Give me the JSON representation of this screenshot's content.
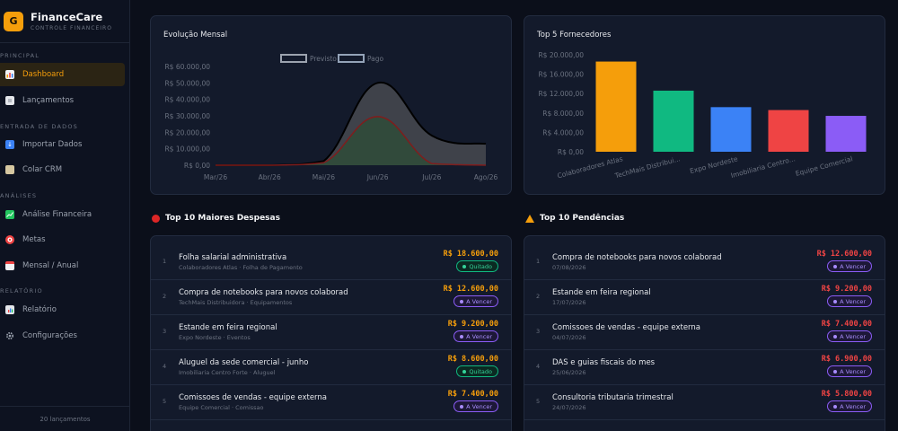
{
  "brand": {
    "logo": "G",
    "name": "FinanceCare",
    "subtitle": "CONTROLE FINANCEIRO"
  },
  "sidebar": {
    "sections": [
      "PRINCIPAL",
      "ENTRADA DE DADOS",
      "ANÁLISES",
      "RELATÓRIO"
    ],
    "items": [
      {
        "label": "Dashboard",
        "icon": "bar-chart-icon",
        "active": true
      },
      {
        "label": "Lançamentos",
        "icon": "document-icon"
      },
      {
        "label": "Importar Dados",
        "icon": "import-icon"
      },
      {
        "label": "Colar CRM",
        "icon": "clipboard-icon"
      },
      {
        "label": "Análise Financeira",
        "icon": "trend-chart-icon"
      },
      {
        "label": "Metas",
        "icon": "target-icon"
      },
      {
        "label": "Mensal / Anual",
        "icon": "calendar-icon"
      },
      {
        "label": "Relatório",
        "icon": "report-icon"
      },
      {
        "label": "Configurações",
        "icon": "gear-icon"
      }
    ],
    "footer": "20 lançamentos"
  },
  "monthly": {
    "title": "Evolução Mensal",
    "chart_data": {
      "type": "area",
      "x": [
        "Mar/26",
        "Abr/26",
        "Mai/26",
        "Jun/26",
        "Jul/26",
        "Ago/26"
      ],
      "y_ticks": [
        "R$ 0,00",
        "R$ 10.000,00",
        "R$ 20.000,00",
        "R$ 30.000,00",
        "R$ 40.000,00",
        "R$ 50.000,00",
        "R$ 60.000,00"
      ],
      "ylim": [
        0,
        60000
      ],
      "legend": "top",
      "series": [
        {
          "name": "Previsto",
          "values": [
            0,
            0,
            2500,
            50000,
            18000,
            13000
          ],
          "color": "#9ca3af"
        },
        {
          "name": "Pago",
          "values": [
            0,
            0,
            1500,
            29500,
            1000,
            0
          ],
          "color": "#7f1d1d"
        }
      ]
    }
  },
  "suppliers": {
    "title": "Top 5 Fornecedores",
    "chart_data": {
      "type": "bar",
      "categories": [
        "Colaboradores Atlas",
        "TechMais Distribui...",
        "Expo Nordeste",
        "Imobiliaria Centro...",
        "Equipe Comercial"
      ],
      "values": [
        18600,
        12600,
        9200,
        8600,
        7400
      ],
      "colors": [
        "#f59e0b",
        "#10b981",
        "#3b82f6",
        "#ef4444",
        "#8b5cf6"
      ],
      "y_ticks": [
        "R$ 0,00",
        "R$ 4.000,00",
        "R$ 8.000,00",
        "R$ 12.000,00",
        "R$ 16.000,00",
        "R$ 20.000,00"
      ],
      "ylim": [
        0,
        20000
      ]
    }
  },
  "expenses": {
    "title": "Top 10 Maiores Despesas",
    "rows": [
      {
        "num": "1",
        "title": "Folha salarial administrativa",
        "sub": "Colaboradores Atlas · Folha de Pagamento",
        "amount": "R$ 18.600,00",
        "status": "Quitado",
        "type": "paid"
      },
      {
        "num": "2",
        "title": "Compra de notebooks para novos colaborad",
        "sub": "TechMais Distribuidora · Equipamentos",
        "amount": "R$ 12.600,00",
        "status": "A Vencer",
        "type": "due"
      },
      {
        "num": "3",
        "title": "Estande em feira regional",
        "sub": "Expo Nordeste · Eventos",
        "amount": "R$ 9.200,00",
        "status": "A Vencer",
        "type": "due"
      },
      {
        "num": "4",
        "title": "Aluguel da sede comercial - junho",
        "sub": "Imobiliaria Centro Forte · Aluguel",
        "amount": "R$ 8.600,00",
        "status": "Quitado",
        "type": "paid"
      },
      {
        "num": "5",
        "title": "Comissoes de vendas - equipe externa",
        "sub": "Equipe Comercial · Comissao",
        "amount": "R$ 7.400,00",
        "status": "A Vencer",
        "type": "due"
      }
    ]
  },
  "pending": {
    "title": "Top 10 Pendências",
    "rows": [
      {
        "num": "1",
        "title": "Compra de notebooks para novos colaborad",
        "sub": "07/08/2026",
        "amount": "R$ 12.600,00",
        "status": "A Vencer",
        "type": "due"
      },
      {
        "num": "2",
        "title": "Estande em feira regional",
        "sub": "17/07/2026",
        "amount": "R$ 9.200,00",
        "status": "A Vencer",
        "type": "due"
      },
      {
        "num": "3",
        "title": "Comissoes de vendas - equipe externa",
        "sub": "04/07/2026",
        "amount": "R$ 7.400,00",
        "status": "A Vencer",
        "type": "due"
      },
      {
        "num": "4",
        "title": "DAS e guias fiscais do mes",
        "sub": "25/06/2026",
        "amount": "R$ 6.900,00",
        "status": "A Vencer",
        "type": "due"
      },
      {
        "num": "5",
        "title": "Consultoria tributaria trimestral",
        "sub": "24/07/2026",
        "amount": "R$ 5.800,00",
        "status": "A Vencer",
        "type": "due"
      }
    ]
  },
  "colors": {
    "accent": "#f59e0b",
    "expense_amount": "#f59e0b",
    "pending_amount": "#ef4444"
  }
}
